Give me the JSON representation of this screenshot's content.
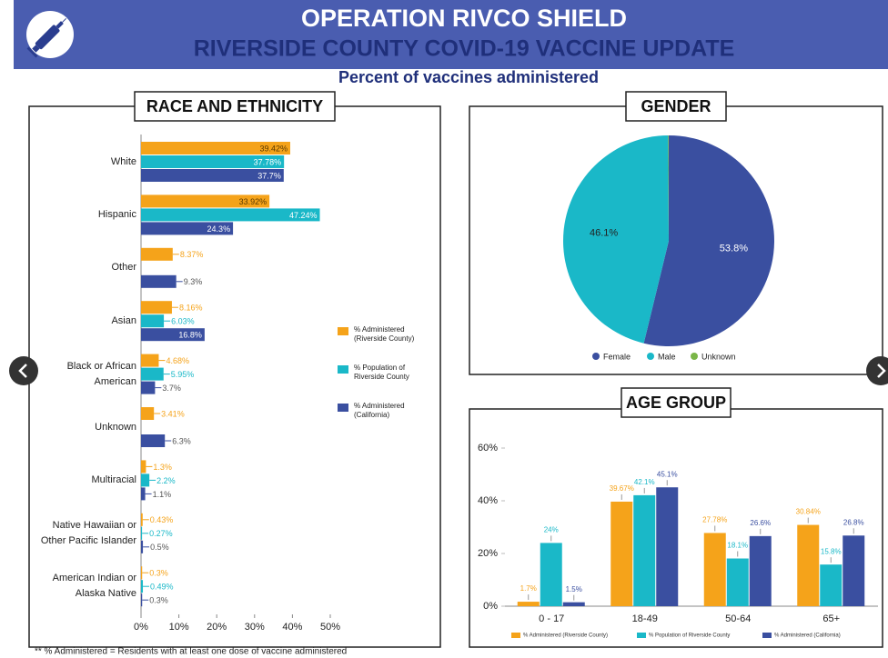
{
  "header": {
    "title": "OPERATION RIVCO SHIELD",
    "subtitle": "RIVERSIDE COUNTY COVID-19 VACCINE UPDATE",
    "caption": "Percent of vaccines administered"
  },
  "footnote": "** % Administered = Residents with at least one dose of vaccine administered",
  "chart_data": [
    {
      "type": "hbar",
      "title": "RACE AND ETHNICITY",
      "categories": [
        "White",
        "Hispanic",
        "Other",
        "Asian",
        "Black or African American",
        "Unknown",
        "Multiracial",
        "Native Hawaiian or Other Pacific Islander",
        "American Indian or Alaska Native"
      ],
      "series": [
        {
          "name": "% Administered (Riverside County)",
          "color": "#f5a31a",
          "values": [
            39.42,
            33.92,
            8.37,
            8.16,
            4.68,
            3.41,
            1.3,
            0.43,
            0.3
          ],
          "value_labels": [
            "39.42%",
            "33.92%",
            "8.37%",
            "8.16%",
            "4.68%",
            "3.41%",
            "1.3%",
            "0.43%",
            "0.3%"
          ]
        },
        {
          "name": "% Population of Riverside County",
          "color": "#1ab8c8",
          "values": [
            37.78,
            47.24,
            null,
            6.03,
            5.95,
            null,
            2.2,
            0.27,
            0.49
          ],
          "value_labels": [
            "37.78%",
            "47.24%",
            null,
            "6.03%",
            "5.95%",
            null,
            "2.2%",
            "0.27%",
            "0.49%"
          ]
        },
        {
          "name": "% Administered (California)",
          "color": "#3a4fa0",
          "values": [
            37.7,
            24.3,
            9.3,
            16.8,
            3.7,
            6.3,
            1.1,
            0.5,
            0.3
          ],
          "value_labels": [
            "37.7%",
            "24.3%",
            "9.3%",
            "16.8%",
            "3.7%",
            "6.3%",
            "1.1%",
            "0.5%",
            "0.3%"
          ]
        }
      ],
      "xlim": [
        0,
        50
      ],
      "xticks": [
        {
          "value": 0,
          "label": "0%"
        },
        {
          "value": 10,
          "label": "10%"
        },
        {
          "value": 20,
          "label": "20%"
        },
        {
          "value": 30,
          "label": "30%"
        },
        {
          "value": 40,
          "label": "40%"
        },
        {
          "value": 50,
          "label": "50%"
        }
      ]
    },
    {
      "type": "pie",
      "title": "GENDER",
      "categories": [
        "Female",
        "Male",
        "Unknown"
      ],
      "values": [
        53.8,
        46.1,
        0.1
      ],
      "value_labels": [
        "53.8%",
        "46.1%",
        null
      ],
      "colors": [
        "#3a4fa0",
        "#1ab8c8",
        "#7ab648"
      ],
      "legend": "bottom"
    },
    {
      "type": "bar",
      "title": "AGE GROUP",
      "categories": [
        "0 - 17",
        "18-49",
        "50-64",
        "65+"
      ],
      "series": [
        {
          "name": "% Administered (Riverside County)",
          "color": "#f5a31a",
          "values": [
            1.7,
            39.67,
            27.78,
            30.84
          ],
          "value_labels": [
            "1.7%",
            "39.67%",
            "27.78%",
            "30.84%"
          ]
        },
        {
          "name": "% Population of Riverside County",
          "color": "#1ab8c8",
          "values": [
            24,
            42.1,
            18.1,
            15.8
          ],
          "value_labels": [
            "24%",
            "42.1%",
            "18.1%",
            "15.8%"
          ]
        },
        {
          "name": "% Administered (California)",
          "color": "#3a4fa0",
          "values": [
            1.5,
            45.1,
            26.6,
            26.8
          ],
          "value_labels": [
            "1.5%",
            "45.1%",
            "26.6%",
            "26.8%"
          ]
        }
      ],
      "ylim": [
        0,
        60
      ],
      "yticks": [
        {
          "value": 0,
          "label": "0%"
        },
        {
          "value": 20,
          "label": "20%"
        },
        {
          "value": 40,
          "label": "40%"
        },
        {
          "value": 60,
          "label": "60%"
        }
      ]
    }
  ]
}
